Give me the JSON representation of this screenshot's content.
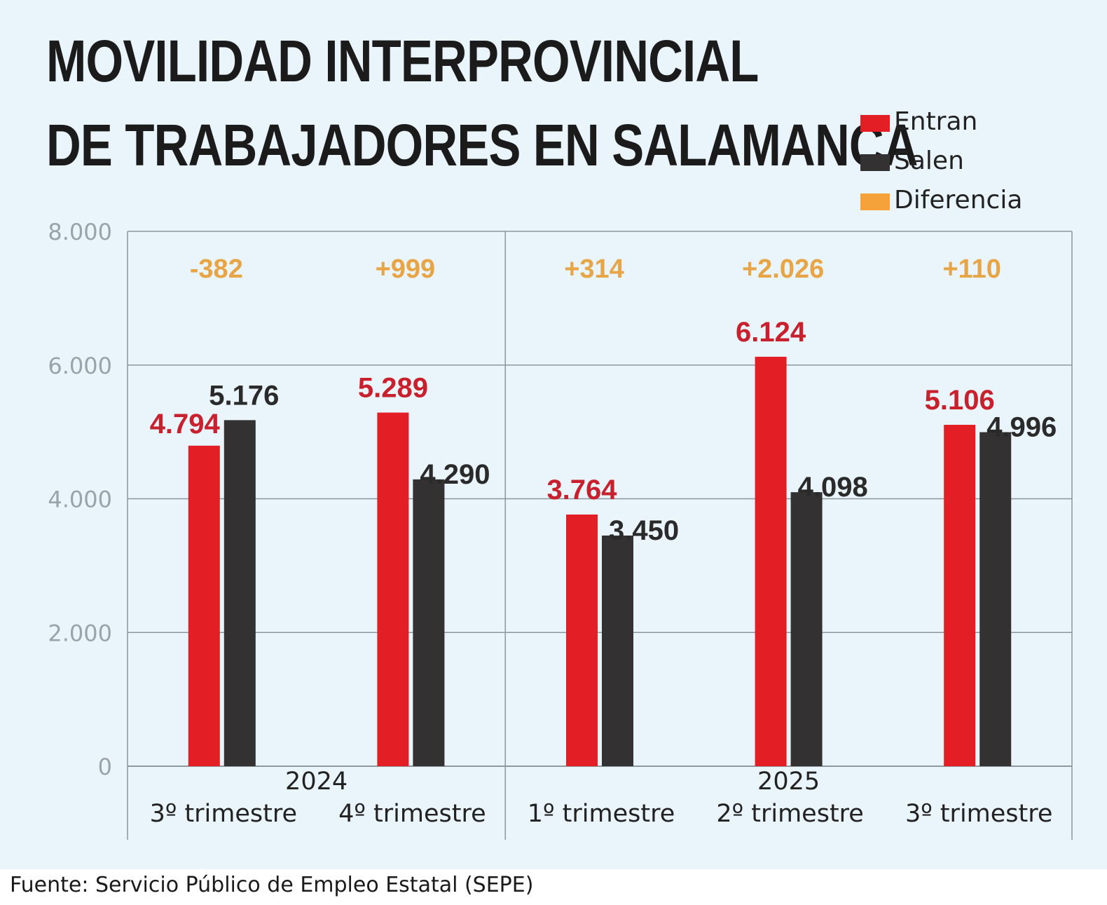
{
  "chart_data": {
    "type": "bar",
    "title_lines": [
      "MOVILIDAD INTERPROVINCIAL",
      "DE TRABAJADORES EN SALAMANCA"
    ],
    "categories": [
      "3º trimestre",
      "4º trimestre",
      "1º trimestre",
      "2º trimestre",
      "3º trimestre"
    ],
    "groups": [
      {
        "label": "2024",
        "count": 2
      },
      {
        "label": "2025",
        "count": 3
      }
    ],
    "series": [
      {
        "name": "Entran",
        "color": "#e31e24",
        "label_color": "#c8202d",
        "values": [
          4794,
          5289,
          3764,
          6124,
          5106
        ],
        "value_labels": [
          "4.794",
          "5.289",
          "3.764",
          "6.124",
          "5.106"
        ]
      },
      {
        "name": "Salen",
        "color": "#333132",
        "label_color": "#2a2a2a",
        "values": [
          5176,
          4290,
          3450,
          4098,
          4996
        ],
        "value_labels": [
          "5.176",
          "4.290",
          "3.450",
          "4.098",
          "4.996"
        ]
      }
    ],
    "difference": {
      "name": "Diferencia",
      "color": "#f5a23a",
      "label_color": "#e8a546",
      "values": [
        -382,
        999,
        314,
        2026,
        110
      ],
      "labels": [
        "-382",
        "+999",
        "+314",
        "+2.026",
        "+110"
      ]
    },
    "ylim": [
      0,
      8000
    ],
    "yticks": [
      0,
      2000,
      4000,
      6000,
      8000
    ],
    "ytick_labels": [
      "0",
      "2.000",
      "4.000",
      "6.000",
      "8.000"
    ],
    "xlabel": "",
    "ylabel": "",
    "grid": true,
    "legend_position": "top-right"
  },
  "legend": {
    "entran": "Entran",
    "salen": "Salen",
    "diferencia": "Diferencia"
  },
  "colors": {
    "entran": "#e31e24",
    "salen": "#333132",
    "diferencia": "#f5a23a",
    "background": "#e9f4fb"
  },
  "source": "Fuente: Servicio Público de Empleo Estatal (SEPE)"
}
